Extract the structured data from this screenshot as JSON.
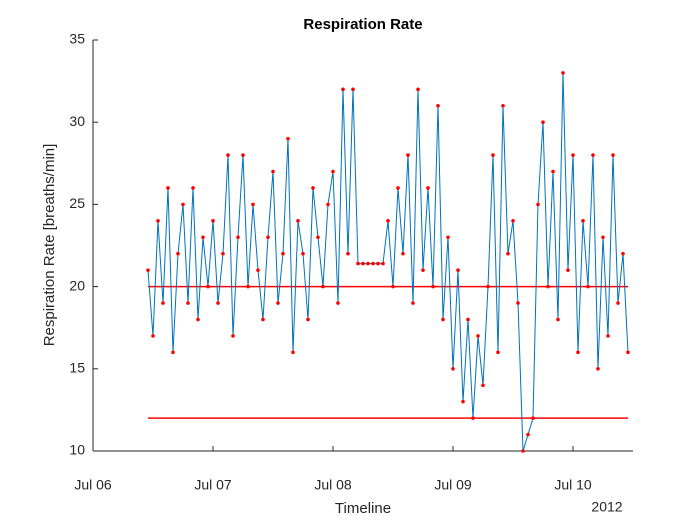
{
  "chart_data": {
    "type": "line",
    "title": "Respiration Rate",
    "xlabel": "Timeline",
    "ylabel": "Respiration Rate [breaths/min]",
    "x_year_label": "2012",
    "ylim": [
      10,
      35
    ],
    "yticks": [
      10,
      15,
      20,
      25,
      30,
      35
    ],
    "xlim": [
      "2012-07-06T00:00",
      "2012-07-10T12:00"
    ],
    "xticks": [
      {
        "value": "2012-07-06T00:00",
        "label": "Jul 06"
      },
      {
        "value": "2012-07-07T00:00",
        "label": "Jul 07"
      },
      {
        "value": "2012-07-08T00:00",
        "label": "Jul 08"
      },
      {
        "value": "2012-07-09T00:00",
        "label": "Jul 09"
      },
      {
        "value": "2012-07-10T00:00",
        "label": "Jul 10"
      }
    ],
    "color": "#0072bd",
    "marker_color": "#ff0000",
    "hline_color": "#ff0000",
    "hlines": [
      20,
      12
    ],
    "x": [
      "2012-07-06T11:00",
      "2012-07-06T12:00",
      "2012-07-06T13:00",
      "2012-07-06T14:00",
      "2012-07-06T15:00",
      "2012-07-06T16:00",
      "2012-07-06T17:00",
      "2012-07-06T18:00",
      "2012-07-06T19:00",
      "2012-07-06T20:00",
      "2012-07-06T21:00",
      "2012-07-06T22:00",
      "2012-07-06T23:00",
      "2012-07-07T00:00",
      "2012-07-07T01:00",
      "2012-07-07T02:00",
      "2012-07-07T03:00",
      "2012-07-07T04:00",
      "2012-07-07T05:00",
      "2012-07-07T06:00",
      "2012-07-07T07:00",
      "2012-07-07T08:00",
      "2012-07-07T09:00",
      "2012-07-07T10:00",
      "2012-07-07T11:00",
      "2012-07-07T12:00",
      "2012-07-07T13:00",
      "2012-07-07T14:00",
      "2012-07-07T15:00",
      "2012-07-07T16:00",
      "2012-07-07T17:00",
      "2012-07-07T18:00",
      "2012-07-07T19:00",
      "2012-07-07T20:00",
      "2012-07-07T21:00",
      "2012-07-07T22:00",
      "2012-07-07T23:00",
      "2012-07-08T00:00",
      "2012-07-08T01:00",
      "2012-07-08T02:00",
      "2012-07-08T03:00",
      "2012-07-08T04:00",
      "2012-07-08T05:00",
      "2012-07-08T06:00",
      "2012-07-08T07:00",
      "2012-07-08T08:00",
      "2012-07-08T09:00",
      "2012-07-08T10:00",
      "2012-07-08T11:00",
      "2012-07-08T12:00",
      "2012-07-08T13:00",
      "2012-07-08T14:00",
      "2012-07-08T15:00",
      "2012-07-08T16:00",
      "2012-07-08T17:00",
      "2012-07-08T18:00",
      "2012-07-08T19:00",
      "2012-07-08T20:00",
      "2012-07-08T21:00",
      "2012-07-08T22:00",
      "2012-07-08T23:00",
      "2012-07-09T00:00",
      "2012-07-09T01:00",
      "2012-07-09T02:00",
      "2012-07-09T03:00",
      "2012-07-09T04:00",
      "2012-07-09T05:00",
      "2012-07-09T06:00",
      "2012-07-09T07:00",
      "2012-07-09T08:00",
      "2012-07-09T09:00",
      "2012-07-09T10:00",
      "2012-07-09T11:00",
      "2012-07-09T12:00",
      "2012-07-09T13:00",
      "2012-07-09T14:00",
      "2012-07-09T15:00",
      "2012-07-09T16:00",
      "2012-07-09T17:00",
      "2012-07-09T18:00",
      "2012-07-09T19:00",
      "2012-07-09T20:00",
      "2012-07-09T21:00",
      "2012-07-09T22:00",
      "2012-07-09T23:00",
      "2012-07-10T00:00",
      "2012-07-10T01:00",
      "2012-07-10T02:00",
      "2012-07-10T03:00",
      "2012-07-10T04:00",
      "2012-07-10T05:00",
      "2012-07-10T06:00",
      "2012-07-10T07:00",
      "2012-07-10T08:00",
      "2012-07-10T09:00",
      "2012-07-10T10:00",
      "2012-07-10T11:00"
    ],
    "values": [
      21,
      17,
      24,
      19,
      26,
      16,
      22,
      25,
      19,
      26,
      18,
      23,
      20,
      24,
      19,
      22,
      28,
      17,
      23,
      28,
      20,
      25,
      21,
      18,
      23,
      27,
      19,
      22,
      29,
      16,
      24,
      22,
      18,
      26,
      23,
      20,
      25,
      27,
      19,
      32,
      22,
      32,
      21.4,
      21.4,
      21.4,
      21.4,
      21.4,
      21.4,
      24,
      20,
      26,
      22,
      28,
      19,
      32,
      21,
      26,
      20,
      31,
      18,
      23,
      15,
      21,
      13,
      18,
      12,
      17,
      14,
      20,
      28,
      16,
      31,
      22,
      24,
      19,
      10,
      11,
      12,
      25,
      30,
      20,
      27,
      18,
      33,
      21,
      28,
      16,
      24,
      20,
      28,
      15,
      23,
      17,
      28,
      19,
      22,
      16
    ]
  }
}
